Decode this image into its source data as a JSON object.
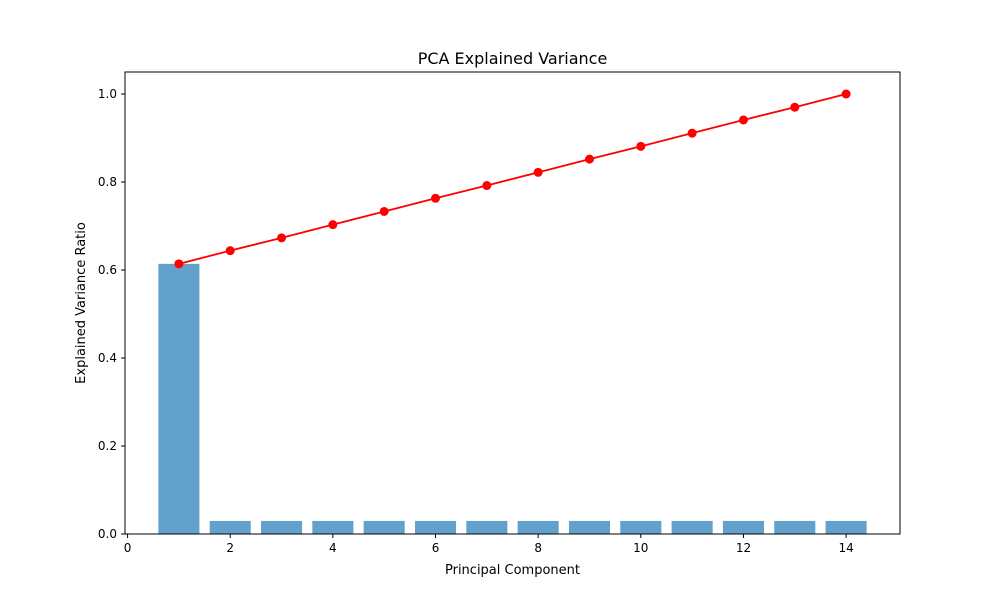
{
  "chart_data": {
    "type": "bar",
    "title": "PCA Explained Variance",
    "xlabel": "Principal Component",
    "ylabel": "Explained Variance Ratio",
    "xlim": [
      -0.05,
      15.05
    ],
    "ylim": [
      0,
      1.05
    ],
    "x_ticks": [
      "0",
      "2",
      "4",
      "6",
      "8",
      "10",
      "12",
      "14"
    ],
    "x_tick_values": [
      0,
      2,
      4,
      6,
      8,
      10,
      12,
      14
    ],
    "y_ticks": [
      "0.0",
      "0.2",
      "0.4",
      "0.6",
      "0.8",
      "1.0"
    ],
    "y_tick_values": [
      0,
      0.2,
      0.4,
      0.6,
      0.8,
      1.0
    ],
    "grid": false,
    "legend": "none",
    "series": [
      {
        "type": "bar",
        "color": "#63a1cd",
        "x": [
          1,
          2,
          3,
          4,
          5,
          6,
          7,
          8,
          9,
          10,
          11,
          12,
          13,
          14
        ],
        "values": [
          0.614,
          0.0297,
          0.0297,
          0.0297,
          0.0297,
          0.0297,
          0.0297,
          0.0297,
          0.0297,
          0.0297,
          0.0297,
          0.0297,
          0.0297,
          0.0297
        ]
      },
      {
        "type": "line",
        "color": "#ff0000",
        "marker": "circle",
        "x": [
          1,
          2,
          3,
          4,
          5,
          6,
          7,
          8,
          9,
          10,
          11,
          12,
          13,
          14
        ],
        "values": [
          0.614,
          0.644,
          0.673,
          0.703,
          0.733,
          0.763,
          0.792,
          0.822,
          0.852,
          0.881,
          0.911,
          0.941,
          0.97,
          1.0
        ]
      }
    ]
  }
}
